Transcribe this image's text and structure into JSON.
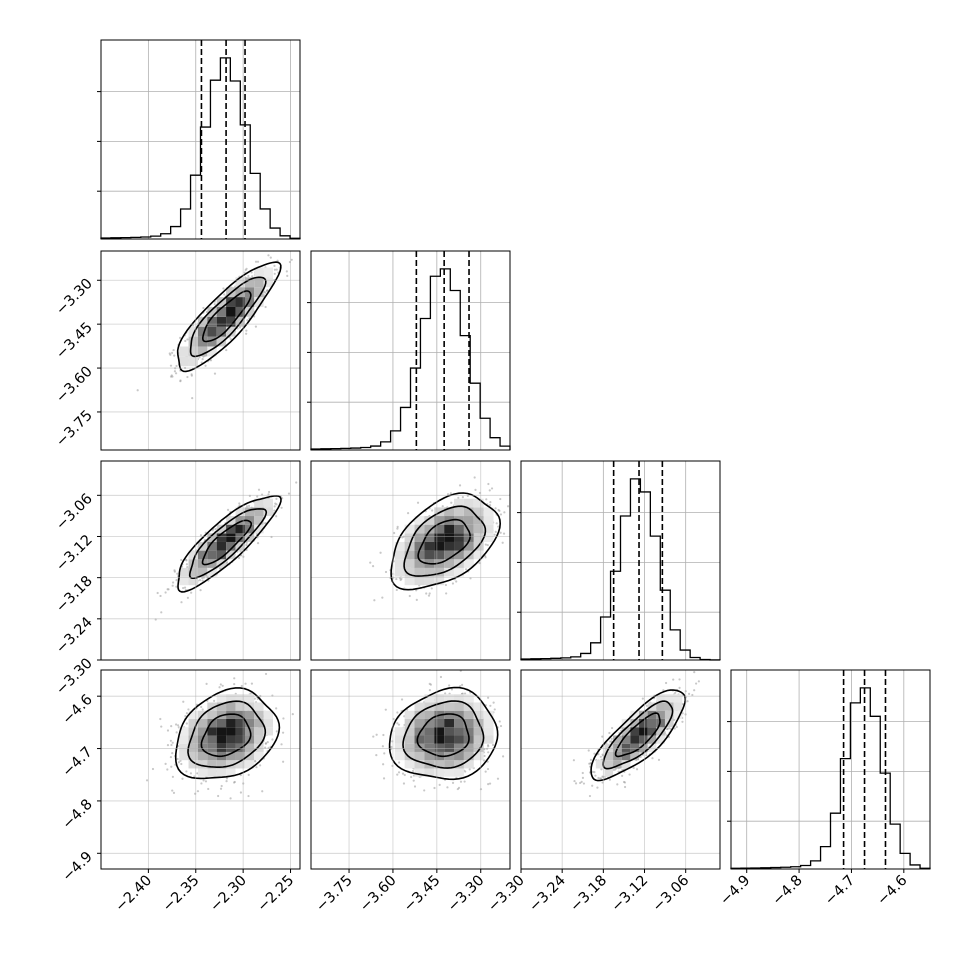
{
  "chart_data": {
    "type": "corner",
    "title": "",
    "grid": true,
    "parameters": [
      {
        "range": [
          -2.45,
          -2.24
        ],
        "mean": -2.318,
        "sd": 0.022,
        "quantiles": [
          -2.344,
          -2.318,
          -2.298
        ]
      },
      {
        "range": [
          -3.88,
          -3.2
        ],
        "mean": -3.425,
        "sd": 0.075,
        "quantiles": [
          -3.52,
          -3.425,
          -3.34
        ]
      },
      {
        "range": [
          -3.3,
          -3.01
        ],
        "mean": -3.128,
        "sd": 0.028,
        "quantiles": [
          -3.165,
          -3.128,
          -3.094
        ]
      },
      {
        "range": [
          -4.93,
          -4.55
        ],
        "mean": -4.675,
        "sd": 0.035,
        "quantiles": [
          -4.715,
          -4.675,
          -4.635
        ]
      }
    ],
    "correlations": {
      "1-0": 0.85,
      "2-0": 0.85,
      "2-1": 0.45,
      "3-0": 0.25,
      "3-1": 0.1,
      "3-2": 0.8
    },
    "x_tick_labels": [
      [
        "−2.40",
        "−2.35",
        "−2.30",
        "−2.25"
      ],
      [
        "−3.75",
        "−3.60",
        "−3.45",
        "−3.30"
      ],
      [
        "−3.30",
        "−3.24",
        "−3.18",
        "−3.12",
        "−3.06"
      ],
      [
        "−4.9",
        "−4.8",
        "−4.7",
        "−4.6"
      ]
    ],
    "y_tick_labels": {
      "row1": [
        "−3.30",
        "−3.45",
        "−3.60",
        "−3.75"
      ],
      "row2": [
        "−3.06",
        "−3.12",
        "−3.18",
        "−3.24",
        "−3.30"
      ],
      "row3": [
        "−4.6",
        "−4.7",
        "−4.8",
        "−4.9"
      ]
    },
    "colors": {
      "line": "#000000",
      "grid": "#b0b0b0",
      "points": "#808080"
    }
  }
}
